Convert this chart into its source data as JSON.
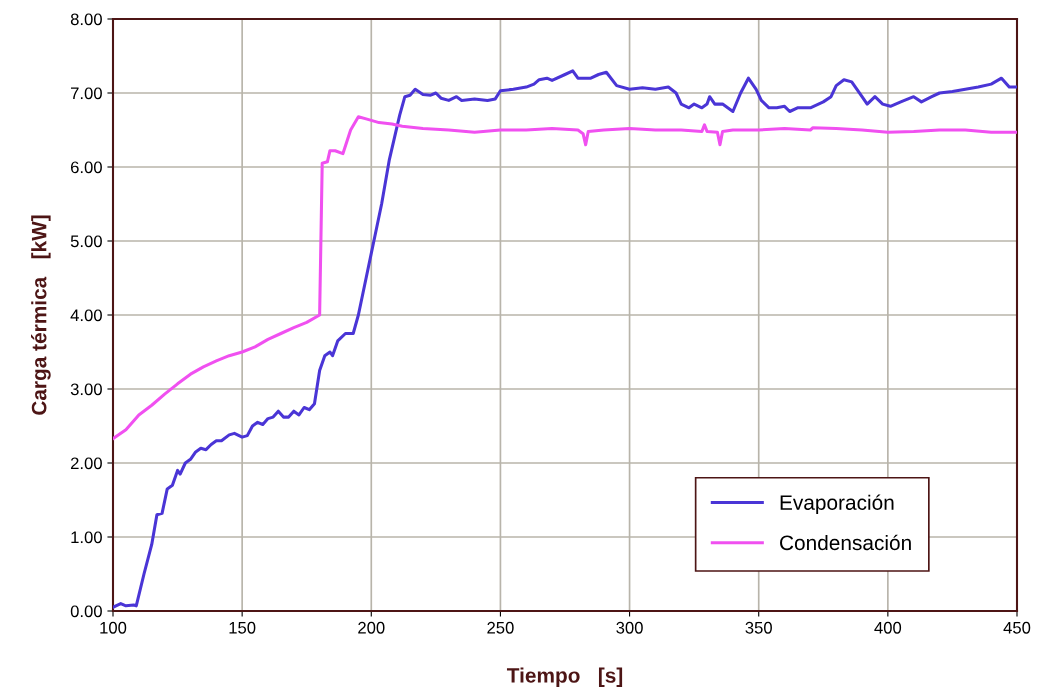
{
  "chart_data": {
    "type": "line",
    "xlabel": "Tiempo   [s]",
    "ylabel": "Carga térmica   [kW]",
    "xlim": [
      100,
      450
    ],
    "xticks": [
      100,
      150,
      200,
      250,
      300,
      350,
      400,
      450
    ],
    "ylim": [
      0,
      8
    ],
    "yticks": [
      {
        "value": 0,
        "label": "0.00"
      },
      {
        "value": 1,
        "label": "1.00"
      },
      {
        "value": 2,
        "label": "2.00"
      },
      {
        "value": 3,
        "label": "3.00"
      },
      {
        "value": 4,
        "label": "4.00"
      },
      {
        "value": 5,
        "label": "5.00"
      },
      {
        "value": 6,
        "label": "6.00"
      },
      {
        "value": 7,
        "label": "7.00"
      },
      {
        "value": 8,
        "label": "8.00"
      }
    ],
    "grid": true,
    "legend": "bottom right",
    "marker": "none",
    "line_style": "solid",
    "series": [
      {
        "name": "Evaporación",
        "color": "#4a35d6",
        "x": [
          100,
          103,
          105,
          108,
          109,
          112,
          115,
          117,
          119,
          121,
          123,
          125,
          126,
          128,
          130,
          132,
          134,
          136,
          138,
          140,
          142,
          145,
          147,
          150,
          152,
          154,
          156,
          158,
          160,
          162,
          164,
          166,
          168,
          170,
          172,
          174,
          176,
          178,
          180,
          182,
          184,
          185,
          187,
          190,
          193,
          195,
          198,
          201,
          204,
          207,
          209,
          211,
          213,
          215,
          217,
          220,
          223,
          225,
          227,
          230,
          233,
          235,
          240,
          245,
          248,
          250,
          255,
          260,
          263,
          265,
          268,
          270,
          275,
          278,
          280,
          285,
          288,
          291,
          295,
          300,
          305,
          310,
          315,
          318,
          320,
          323,
          325,
          328,
          330,
          331,
          333,
          336,
          340,
          343,
          346,
          349,
          351,
          354,
          357,
          360,
          362,
          365,
          370,
          375,
          378,
          380,
          383,
          386,
          390,
          392,
          395,
          398,
          401,
          405,
          410,
          413,
          417,
          420,
          425,
          430,
          435,
          440,
          444,
          447,
          450
        ],
        "values": [
          0.05,
          0.1,
          0.07,
          0.08,
          0.07,
          0.5,
          0.9,
          1.3,
          1.32,
          1.65,
          1.7,
          1.9,
          1.85,
          2.0,
          2.05,
          2.15,
          2.2,
          2.18,
          2.25,
          2.3,
          2.3,
          2.38,
          2.4,
          2.35,
          2.37,
          2.5,
          2.55,
          2.52,
          2.6,
          2.62,
          2.7,
          2.62,
          2.62,
          2.7,
          2.65,
          2.75,
          2.72,
          2.8,
          3.25,
          3.45,
          3.5,
          3.45,
          3.65,
          3.75,
          3.75,
          4.0,
          4.5,
          5.0,
          5.5,
          6.1,
          6.4,
          6.7,
          6.95,
          6.97,
          7.05,
          6.98,
          6.97,
          7.0,
          6.93,
          6.9,
          6.95,
          6.9,
          6.92,
          6.9,
          6.92,
          7.03,
          7.05,
          7.08,
          7.12,
          7.18,
          7.2,
          7.17,
          7.25,
          7.3,
          7.2,
          7.2,
          7.25,
          7.28,
          7.1,
          7.05,
          7.07,
          7.05,
          7.08,
          7.0,
          6.85,
          6.8,
          6.85,
          6.8,
          6.85,
          6.95,
          6.85,
          6.85,
          6.75,
          7.0,
          7.2,
          7.05,
          6.9,
          6.8,
          6.8,
          6.82,
          6.75,
          6.8,
          6.8,
          6.88,
          6.95,
          7.1,
          7.18,
          7.15,
          6.95,
          6.85,
          6.95,
          6.85,
          6.82,
          6.88,
          6.95,
          6.88,
          6.95,
          7.0,
          7.02,
          7.05,
          7.08,
          7.12,
          7.2,
          7.08,
          7.08
        ]
      },
      {
        "name": "Condensación",
        "color": "#f050f0",
        "x": [
          100,
          105,
          110,
          115,
          120,
          125,
          130,
          135,
          140,
          145,
          150,
          155,
          160,
          165,
          170,
          175,
          180,
          181,
          183,
          184,
          186,
          189,
          192,
          195,
          198,
          203,
          208,
          212,
          220,
          230,
          240,
          250,
          260,
          270,
          280,
          282,
          283,
          284,
          290,
          300,
          310,
          320,
          328,
          329,
          330,
          334,
          335,
          336,
          340,
          350,
          360,
          370,
          371,
          380,
          390,
          400,
          410,
          420,
          430,
          440,
          450
        ],
        "values": [
          2.33,
          2.45,
          2.65,
          2.78,
          2.93,
          3.07,
          3.2,
          3.3,
          3.38,
          3.45,
          3.5,
          3.57,
          3.67,
          3.75,
          3.83,
          3.9,
          4.0,
          6.05,
          6.07,
          6.22,
          6.22,
          6.18,
          6.5,
          6.68,
          6.65,
          6.6,
          6.58,
          6.55,
          6.52,
          6.5,
          6.47,
          6.5,
          6.5,
          6.52,
          6.5,
          6.45,
          6.3,
          6.48,
          6.5,
          6.52,
          6.5,
          6.5,
          6.48,
          6.57,
          6.48,
          6.47,
          6.3,
          6.48,
          6.5,
          6.5,
          6.52,
          6.5,
          6.53,
          6.52,
          6.5,
          6.47,
          6.48,
          6.5,
          6.5,
          6.47,
          6.47
        ]
      }
    ]
  }
}
